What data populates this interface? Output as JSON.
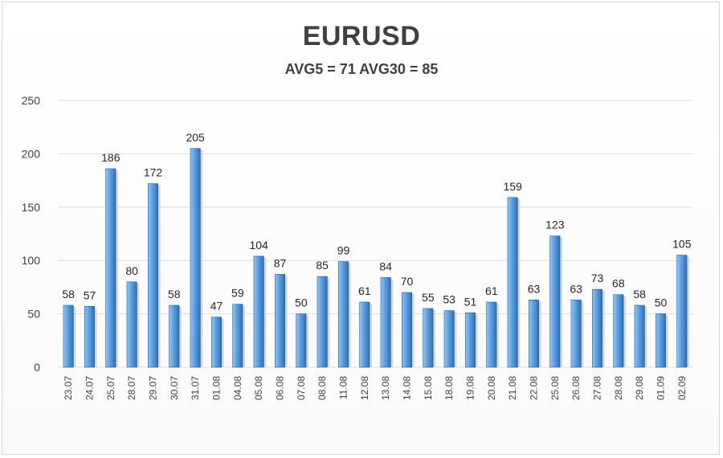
{
  "chart_data": {
    "type": "bar",
    "title": "EURUSD",
    "subtitle": "AVG5 = 71 AVG30 = 85",
    "categories": [
      "23.07",
      "24.07",
      "25.07",
      "28.07",
      "29.07",
      "30.07",
      "31.07",
      "01.08",
      "04.08",
      "05.08",
      "06.08",
      "07.08",
      "08.08",
      "11.08",
      "12.08",
      "13.08",
      "14.08",
      "15.08",
      "18.08",
      "19.08",
      "20.08",
      "21.08",
      "22.08",
      "25.08",
      "26.08",
      "27.08",
      "28.08",
      "29.08",
      "01.09",
      "02.09"
    ],
    "values": [
      58,
      57,
      186,
      80,
      172,
      58,
      205,
      47,
      59,
      104,
      87,
      50,
      85,
      99,
      61,
      84,
      70,
      55,
      53,
      51,
      61,
      159,
      63,
      123,
      63,
      73,
      68,
      58,
      50,
      105
    ],
    "ylim": [
      0,
      250
    ],
    "yticks": [
      0,
      50,
      100,
      150,
      200,
      250
    ],
    "grid": true,
    "legend": "none",
    "colors": {
      "bar_top": "#9cc5ee",
      "bar_mid": "#5a9ee0",
      "bar_dark": "#2d70b8",
      "bar_outline": "#1f5b99"
    }
  }
}
